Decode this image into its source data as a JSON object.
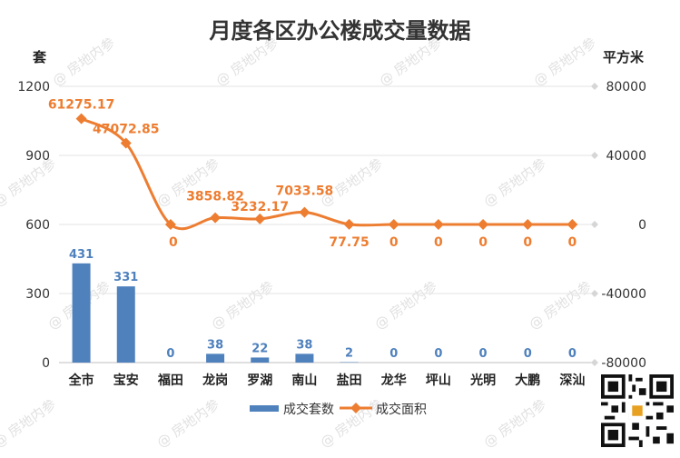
{
  "title": "月度各区办公楼成交量数据",
  "left_unit": "套",
  "right_unit": "平方米",
  "watermark": "@ 房地内参",
  "colors": {
    "bar": "#4f81bd",
    "line": "#ed7d31",
    "bar_label": "#4f81bd",
    "line_label": "#ed7d31"
  },
  "chart_data": {
    "type": "bar+line",
    "title": "月度各区办公楼成交量数据",
    "categories": [
      "全市",
      "宝安",
      "福田",
      "龙岗",
      "罗湖",
      "南山",
      "盐田",
      "龙华",
      "坪山",
      "光明",
      "大鹏",
      "深汕"
    ],
    "series": [
      {
        "name": "成交套数",
        "type": "bar",
        "axis": "left",
        "values": [
          431,
          331,
          0,
          38,
          22,
          38,
          2,
          0,
          0,
          0,
          0,
          0
        ],
        "labels": [
          "431",
          "331",
          "0",
          "38",
          "22",
          "38",
          "2",
          "0",
          "0",
          "0",
          "0",
          "0"
        ]
      },
      {
        "name": "成交面积",
        "type": "line",
        "axis": "right",
        "values": [
          61275.17,
          47072.85,
          0,
          3858.82,
          3232.17,
          7033.58,
          77.75,
          0,
          0,
          0,
          0,
          0
        ],
        "labels": [
          "61275.17",
          "47072.85",
          "0",
          "3858.82",
          "3232.17",
          "7033.58",
          "77.75",
          "0",
          "0",
          "0",
          "0",
          "0"
        ]
      }
    ],
    "y_left": {
      "unit": "套",
      "min": 0,
      "max": 1200,
      "ticks": [
        0,
        300,
        600,
        900,
        1200
      ]
    },
    "y_right": {
      "unit": "平方米",
      "min": -80000,
      "max": 80000,
      "ticks": [
        -80000,
        -40000,
        0,
        40000,
        80000
      ]
    },
    "grid": true,
    "legend_position": "bottom"
  }
}
